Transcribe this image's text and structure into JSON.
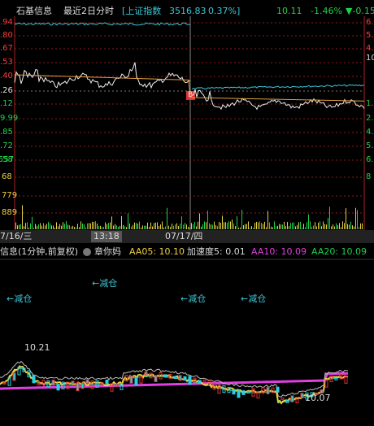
{
  "header": {
    "stock": "石基信息",
    "mode": "最近2日分时",
    "index_open": "[上证指数",
    "index_value": "3516.83",
    "index_change": "0.37%]",
    "price": "10.11",
    "change_pct": "-1.46%",
    "change": "▼-0.15"
  },
  "left_axis": [
    ".94",
    ".80",
    ".67",
    ".53",
    ".40",
    ".26",
    ".12",
    "9.99",
    ".85",
    ".72",
    ".58",
    "557"
  ],
  "volume_axis": [
    "68",
    "779",
    "889"
  ],
  "right_axis": [
    "6.",
    "5.",
    "4.",
    "10",
    "1.",
    "2.",
    "4.",
    "5.",
    "6.",
    "8"
  ],
  "time_axis": {
    "day1": "7/16/三",
    "cursor": "13:18",
    "day2": "07/17/四"
  },
  "indicator": {
    "name": "信息(1分钟,前复权)",
    "formula": "章你妈",
    "aa05": "AA05: 10.10",
    "acc": "加速度5: 0.01",
    "aa10": "AA10: 10.09",
    "aa20": "AA20: 10.09"
  },
  "annotations": {
    "reduce": [
      "←减仓",
      "←减仓",
      "←减仓",
      "←减仓"
    ],
    "high": "10.21",
    "low": "10.07"
  },
  "marker": "B"
}
